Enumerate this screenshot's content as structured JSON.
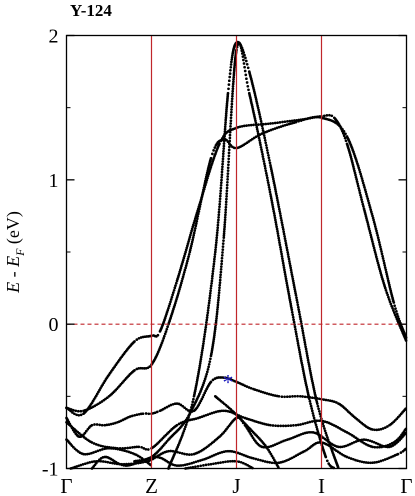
{
  "chart_data": {
    "type": "scatter",
    "title": "Y-124",
    "ylabel_parts": [
      "E - E",
      "F",
      " (eV)"
    ],
    "ylim": [
      -1,
      2
    ],
    "yticks": [
      -1,
      0,
      1,
      2
    ],
    "ytick_labels": [
      "-1",
      "0",
      "1",
      "2"
    ],
    "x_range": [
      0,
      4
    ],
    "kpoints": [
      {
        "label": "Γ",
        "x": 0
      },
      {
        "label": "Z",
        "x": 1
      },
      {
        "label": "J",
        "x": 2
      },
      {
        "label": "I",
        "x": 3
      },
      {
        "label": "Γ",
        "x": 4
      }
    ],
    "fermi_level": 0,
    "annotation": {
      "text": "*",
      "x": 1.9,
      "y": -0.37,
      "color": "#1f1fbf"
    },
    "colors": {
      "kpoint_line": "#c0262b",
      "fermi_line": "#c0262b",
      "bands": "#000000"
    },
    "series": [
      {
        "values": [
          [
            0,
            -0.58
          ],
          [
            0.2,
            -0.6
          ],
          [
            0.5,
            -0.5
          ],
          [
            0.8,
            -0.32
          ],
          [
            1.0,
            -0.28
          ],
          [
            1.2,
            0.0
          ],
          [
            1.45,
            0.5
          ],
          [
            1.7,
            1.15
          ],
          [
            1.85,
            1.28
          ],
          [
            2.0,
            1.22
          ],
          [
            2.3,
            1.32
          ],
          [
            2.7,
            1.4
          ],
          [
            3.0,
            1.43
          ],
          [
            3.3,
            1.3
          ],
          [
            3.6,
            0.75
          ],
          [
            3.85,
            0.15
          ],
          [
            4.0,
            -0.1
          ]
        ]
      },
      {
        "values": [
          [
            0,
            -0.58
          ],
          [
            0.2,
            -0.62
          ],
          [
            0.5,
            -0.35
          ],
          [
            0.8,
            -0.12
          ],
          [
            1.0,
            -0.08
          ],
          [
            1.1,
            -0.05
          ],
          [
            1.3,
            0.3
          ],
          [
            1.55,
            0.8
          ],
          [
            1.8,
            1.25
          ],
          [
            2.0,
            1.36
          ],
          [
            2.4,
            1.39
          ],
          [
            2.8,
            1.42
          ],
          [
            3.0,
            1.44
          ],
          [
            3.15,
            1.43
          ],
          [
            3.3,
            1.25
          ],
          [
            3.5,
            0.8
          ],
          [
            3.75,
            0.25
          ],
          [
            4.0,
            -0.12
          ]
        ]
      },
      {
        "values": [
          [
            0.0,
            -0.65
          ],
          [
            0.15,
            -0.78
          ],
          [
            0.3,
            -0.7
          ],
          [
            0.45,
            -0.7
          ],
          [
            0.6,
            -0.68
          ],
          [
            0.75,
            -0.64
          ],
          [
            0.9,
            -0.62
          ],
          [
            1.0,
            -0.62
          ],
          [
            1.1,
            -0.6
          ],
          [
            1.3,
            -0.55
          ],
          [
            1.5,
            -0.6
          ],
          [
            1.7,
            -0.4
          ],
          [
            1.85,
            -0.37
          ],
          [
            2.0,
            -0.4
          ],
          [
            2.2,
            -0.45
          ],
          [
            2.5,
            -0.5
          ],
          [
            2.75,
            -0.5
          ],
          [
            3.0,
            -0.52
          ],
          [
            3.2,
            -0.55
          ],
          [
            3.4,
            -0.65
          ],
          [
            3.6,
            -0.73
          ],
          [
            3.8,
            -0.7
          ],
          [
            4.0,
            -0.58
          ]
        ]
      },
      {
        "values": [
          [
            0.8,
            -0.95
          ],
          [
            1.0,
            -0.92
          ],
          [
            1.2,
            -0.8
          ],
          [
            1.45,
            -0.62
          ],
          [
            1.7,
            -0.22
          ],
          [
            1.85,
            0.6
          ],
          [
            2.0,
            1.9
          ],
          [
            2.15,
            1.6
          ],
          [
            2.4,
            0.9
          ],
          [
            2.65,
            0.1
          ],
          [
            2.85,
            -0.5
          ],
          [
            3.05,
            -0.92
          ],
          [
            3.15,
            -1.0
          ]
        ]
      },
      {
        "values": [
          [
            1.2,
            -1.0
          ],
          [
            1.5,
            -0.5
          ],
          [
            1.75,
            0.5
          ],
          [
            1.9,
            1.6
          ],
          [
            2.0,
            1.95
          ],
          [
            2.15,
            1.75
          ],
          [
            2.4,
            1.1
          ],
          [
            2.7,
            0.2
          ],
          [
            2.95,
            -0.55
          ],
          [
            3.2,
            -1.0
          ]
        ]
      },
      {
        "values": [
          [
            0.0,
            -0.68
          ],
          [
            0.3,
            -0.82
          ],
          [
            0.6,
            -0.86
          ],
          [
            0.85,
            -0.85
          ],
          [
            1.0,
            -0.86
          ],
          [
            1.3,
            -0.7
          ],
          [
            1.55,
            -0.65
          ],
          [
            1.85,
            -0.6
          ],
          [
            2.1,
            -0.65
          ],
          [
            2.4,
            -0.7
          ],
          [
            2.7,
            -0.7
          ],
          [
            3.0,
            -0.67
          ],
          [
            3.3,
            -0.75
          ],
          [
            3.6,
            -0.85
          ],
          [
            3.85,
            -0.82
          ],
          [
            4.0,
            -0.72
          ]
        ]
      },
      {
        "values": [
          [
            0.0,
            -0.8
          ],
          [
            0.2,
            -0.9
          ],
          [
            0.5,
            -0.86
          ],
          [
            0.8,
            -0.9
          ],
          [
            1.0,
            -0.98
          ]
        ]
      },
      {
        "values": [
          [
            0.05,
            -1.0
          ],
          [
            0.35,
            -0.95
          ],
          [
            0.65,
            -0.97
          ],
          [
            0.95,
            -0.95
          ],
          [
            1.2,
            -0.88
          ],
          [
            1.5,
            -0.9
          ],
          [
            1.8,
            -0.78
          ],
          [
            2.0,
            -0.65
          ],
          [
            2.1,
            -0.7
          ],
          [
            2.3,
            -0.85
          ],
          [
            2.6,
            -0.8
          ],
          [
            2.9,
            -0.75
          ],
          [
            3.2,
            -0.85
          ],
          [
            3.5,
            -0.8
          ],
          [
            3.8,
            -0.85
          ],
          [
            4.0,
            -0.75
          ]
        ]
      },
      {
        "values": [
          [
            1.75,
            -0.5
          ],
          [
            1.95,
            -0.6
          ],
          [
            2.15,
            -0.72
          ],
          [
            2.35,
            -0.85
          ],
          [
            2.5,
            -1.0
          ]
        ]
      },
      {
        "values": [
          [
            0.3,
            -1.0
          ],
          [
            0.45,
            -0.92
          ],
          [
            0.7,
            -0.98
          ],
          [
            1.05,
            -0.92
          ],
          [
            1.3,
            -0.98
          ],
          [
            1.6,
            -0.94
          ],
          [
            1.9,
            -0.88
          ],
          [
            2.2,
            -0.93
          ],
          [
            2.5,
            -0.96
          ],
          [
            2.8,
            -0.88
          ],
          [
            3.0,
            -0.82
          ],
          [
            3.3,
            -0.92
          ],
          [
            3.6,
            -0.96
          ],
          [
            3.9,
            -0.9
          ],
          [
            4.0,
            -0.86
          ]
        ]
      },
      {
        "values": [
          [
            1.4,
            -1.0
          ],
          [
            1.7,
            -0.97
          ],
          [
            2.0,
            -0.95
          ],
          [
            2.2,
            -1.0
          ]
        ]
      }
    ]
  }
}
